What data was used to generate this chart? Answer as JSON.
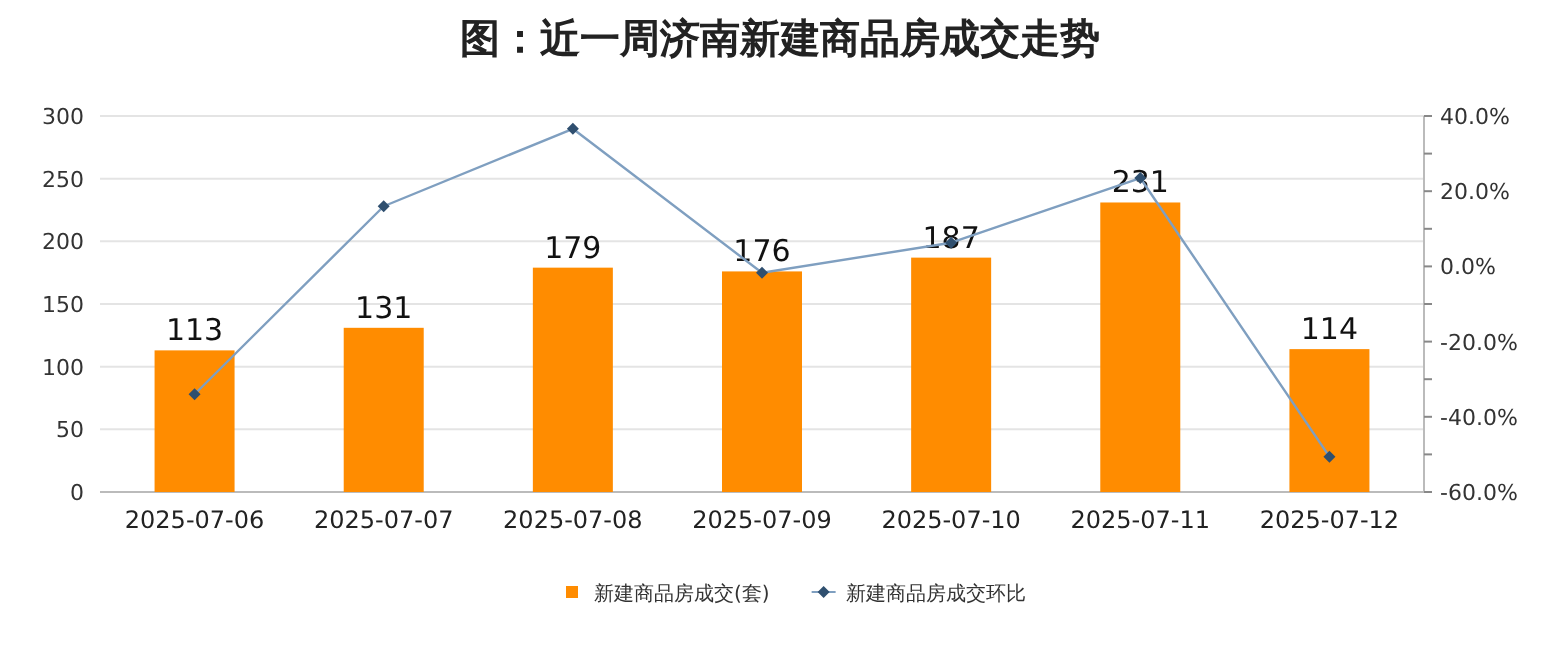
{
  "chart_data": {
    "type": "bar",
    "title": "图：近一周济南新建商品房成交走势",
    "categories": [
      "2025-07-06",
      "2025-07-07",
      "2025-07-08",
      "2025-07-09",
      "2025-07-10",
      "2025-07-11",
      "2025-07-12"
    ],
    "series": [
      {
        "name": "新建商品房成交(套)",
        "color": "#ff8c00",
        "values": [
          113,
          131,
          179,
          176,
          187,
          231,
          114
        ],
        "value_labels": [
          "113",
          "131",
          "179",
          "176",
          "187",
          "231",
          "114"
        ]
      },
      {
        "name": "新建商品房成交环比",
        "type": "line",
        "axis": "y2",
        "color": "#7f9fc0",
        "marker": "diamond",
        "values": [
          -34.0,
          16.0,
          36.6,
          -1.7,
          6.3,
          23.5,
          -50.6
        ]
      }
    ],
    "ylim": [
      0,
      300
    ],
    "yticks": [
      0,
      50,
      100,
      150,
      200,
      250,
      300
    ],
    "y2lim": [
      -60,
      40
    ],
    "y2ticks": [
      {
        "value": -60,
        "label": "-60.0%"
      },
      {
        "value": -50,
        "label": null
      },
      {
        "value": -40,
        "label": "-40.0%"
      },
      {
        "value": -30,
        "label": null
      },
      {
        "value": -20,
        "label": "-20.0%"
      },
      {
        "value": -10,
        "label": null
      },
      {
        "value": 0,
        "label": "0.0%"
      },
      {
        "value": 10,
        "label": null
      },
      {
        "value": 20,
        "label": "20.0%"
      },
      {
        "value": 30,
        "label": null
      },
      {
        "value": 40,
        "label": "40.0%"
      }
    ],
    "grid": "y",
    "legend": "bottom"
  }
}
